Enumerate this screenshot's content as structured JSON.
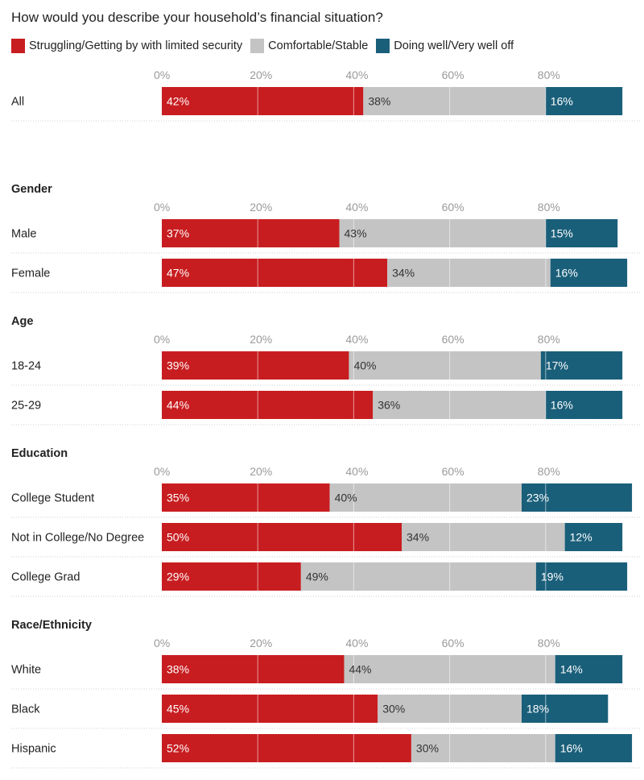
{
  "chart_data": {
    "type": "bar",
    "orientation": "horizontal",
    "stacked": true,
    "title": "How would you describe your household’s financial situation?",
    "xlim": [
      0,
      100
    ],
    "tick_values": [
      0,
      20,
      40,
      60,
      80
    ],
    "tick_labels": [
      "0%",
      "20%",
      "40%",
      "60%",
      "80%"
    ],
    "legend": [
      {
        "name": "Struggling/Getting by with limited security",
        "color": "#c81d20"
      },
      {
        "name": "Comfortable/Stable",
        "color": "#c4c4c4"
      },
      {
        "name": "Doing well/Very well off",
        "color": "#1a5f7a"
      }
    ],
    "groups": [
      {
        "name": "",
        "rows": [
          {
            "label": "All",
            "values": [
              42,
              38,
              16
            ]
          }
        ]
      },
      {
        "name": "Gender",
        "rows": [
          {
            "label": "Male",
            "values": [
              37,
              43,
              15
            ]
          },
          {
            "label": "Female",
            "values": [
              47,
              34,
              16
            ]
          }
        ]
      },
      {
        "name": "Age",
        "rows": [
          {
            "label": "18-24",
            "values": [
              39,
              40,
              17
            ]
          },
          {
            "label": "25-29",
            "values": [
              44,
              36,
              16
            ]
          }
        ]
      },
      {
        "name": "Education",
        "rows": [
          {
            "label": "College Student",
            "values": [
              35,
              40,
              23
            ]
          },
          {
            "label": "Not in College/No Degree",
            "values": [
              50,
              34,
              12
            ]
          },
          {
            "label": "College Grad",
            "values": [
              29,
              49,
              19
            ]
          }
        ]
      },
      {
        "name": "Race/Ethnicity",
        "rows": [
          {
            "label": "White",
            "values": [
              38,
              44,
              14
            ]
          },
          {
            "label": "Black",
            "values": [
              45,
              30,
              18
            ]
          },
          {
            "label": "Hispanic",
            "values": [
              52,
              30,
              16
            ]
          }
        ]
      }
    ]
  }
}
